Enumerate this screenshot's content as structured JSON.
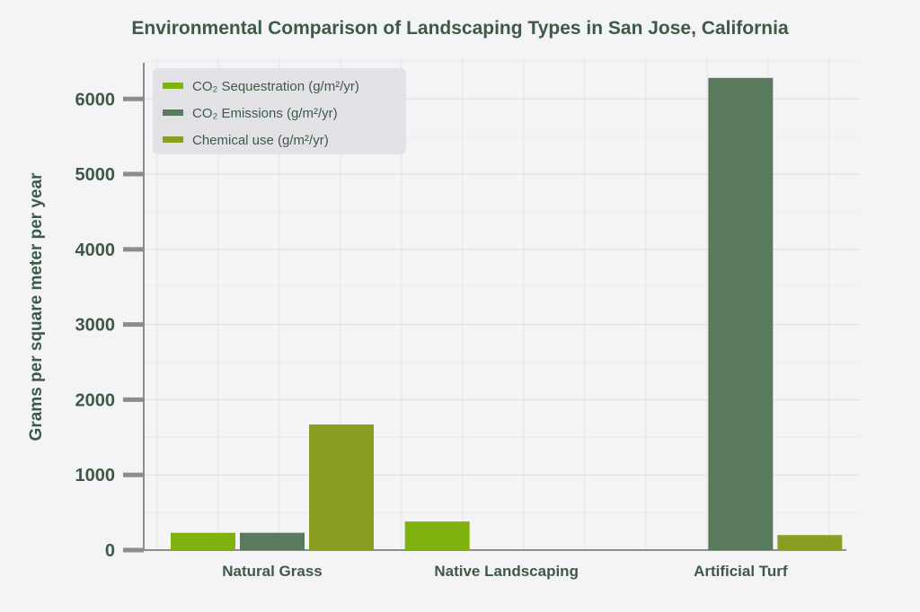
{
  "chart_data": {
    "type": "bar",
    "title": "Environmental Comparison of Landscaping Types in San Jose, California",
    "xlabel": "",
    "ylabel": "Grams per square meter per year",
    "categories": [
      "Natural Grass",
      "Native Landscaping",
      "Artificial Turf"
    ],
    "series": [
      {
        "name": "CO₂ Sequestration (g/m²/yr)",
        "values": [
          230,
          380,
          null
        ],
        "color": "#7fb10f"
      },
      {
        "name": "CO₂ Emissions (g/m²/yr)",
        "values": [
          230,
          null,
          6280
        ],
        "color": "#5a7a5d"
      },
      {
        "name": "Chemical use (g/m²/yr)",
        "values": [
          1670,
          null,
          200
        ],
        "color": "#8a9e22"
      }
    ],
    "yticks": [
      0,
      1000,
      2000,
      3000,
      4000,
      5000,
      6000
    ],
    "ylim": [
      0,
      6600
    ],
    "grid": true,
    "legend_position": "top-left"
  }
}
